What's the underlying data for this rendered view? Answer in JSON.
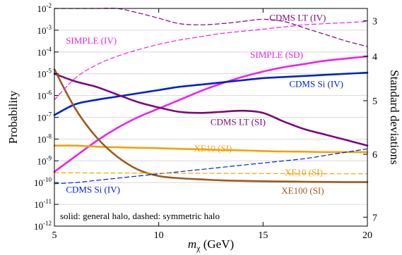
{
  "chart_data": {
    "type": "line",
    "xlabel_main": "m",
    "xlabel_sub": "χ",
    "xlabel_unit": " (GeV)",
    "ylabel": "Probability",
    "ylabel_right": "Standard deviations",
    "xlim": [
      5,
      20
    ],
    "ylim_log10": [
      -12,
      -2
    ],
    "y_scale": "log",
    "grid": "horizontal",
    "x_ticks": [
      {
        "v": 5,
        "label": "5"
      },
      {
        "v": 10,
        "label": "10"
      },
      {
        "v": 15,
        "label": "15"
      },
      {
        "v": 20,
        "label": "20"
      }
    ],
    "y_ticks": [
      {
        "exp": -2,
        "label": "10-2"
      },
      {
        "exp": -3,
        "label": "10-3"
      },
      {
        "exp": -4,
        "label": "10-4"
      },
      {
        "exp": -5,
        "label": "10-5"
      },
      {
        "exp": -6,
        "label": "10-6"
      },
      {
        "exp": -7,
        "label": "10-7"
      },
      {
        "exp": -8,
        "label": "10-8"
      },
      {
        "exp": -9,
        "label": "10-9"
      },
      {
        "exp": -10,
        "label": "10-10"
      },
      {
        "exp": -11,
        "label": "10-11"
      },
      {
        "exp": -12,
        "label": "10-12"
      }
    ],
    "right_ticks": [
      {
        "sigma": 3,
        "log10p": -2.57,
        "label": "3"
      },
      {
        "sigma": 4,
        "log10p": -4.2,
        "label": "4"
      },
      {
        "sigma": 5,
        "log10p": -6.24,
        "label": "5"
      },
      {
        "sigma": 6,
        "log10p": -8.7,
        "label": "6"
      },
      {
        "sigma": 7,
        "log10p": -11.59,
        "label": "7"
      }
    ],
    "legend_note": "solid: general halo, dashed: symmetric halo",
    "series": [
      {
        "name": "SIMPLE (SD)",
        "style": "solid",
        "color": "#ee22ee",
        "x": [
          5,
          6,
          7,
          8,
          9,
          10,
          11,
          12,
          13,
          14,
          15,
          16,
          17,
          18,
          19,
          20
        ],
        "log10p": [
          -9.5,
          -8.8,
          -8.1,
          -7.5,
          -7.0,
          -6.6,
          -6.2,
          -5.8,
          -5.45,
          -5.15,
          -4.9,
          -4.7,
          -4.55,
          -4.4,
          -4.3,
          -4.2
        ]
      },
      {
        "name": "CDMS Si (IV)",
        "style": "solid",
        "color": "#0022cc",
        "x": [
          5,
          6,
          7,
          8,
          9,
          10,
          11,
          12,
          13,
          14,
          15,
          16,
          17,
          18,
          19,
          20
        ],
        "log10p": [
          -6.9,
          -6.4,
          -6.2,
          -6.05,
          -5.9,
          -5.75,
          -5.6,
          -5.5,
          -5.4,
          -5.3,
          -5.2,
          -5.15,
          -5.1,
          -5.05,
          -5.0,
          -4.95
        ]
      },
      {
        "name": "CDMS LT (SI)",
        "style": "solid",
        "color": "#7a0a7a",
        "x": [
          5,
          6,
          7,
          8,
          9,
          10,
          11,
          12,
          13,
          14,
          15,
          16,
          17,
          18,
          19,
          20
        ],
        "log10p": [
          -5.0,
          -5.35,
          -5.6,
          -5.95,
          -6.3,
          -6.55,
          -6.75,
          -6.8,
          -6.75,
          -6.7,
          -6.8,
          -7.2,
          -7.55,
          -7.8,
          -8.05,
          -8.3
        ]
      },
      {
        "name": "XE10 (SI)",
        "style": "solid",
        "color": "#f2a20a",
        "x": [
          5,
          6,
          7,
          8,
          9,
          10,
          11,
          12,
          13,
          14,
          15,
          16,
          17,
          18,
          19,
          20
        ],
        "log10p": [
          -8.3,
          -8.3,
          -8.35,
          -8.38,
          -8.4,
          -8.42,
          -8.45,
          -8.47,
          -8.5,
          -8.52,
          -8.55,
          -8.57,
          -8.58,
          -8.6,
          -8.6,
          -8.6
        ]
      },
      {
        "name": "XE100 (SI)",
        "style": "solid",
        "color": "#9a5a20",
        "x": [
          5,
          6,
          7,
          8,
          9,
          10,
          11,
          12,
          13,
          14,
          15,
          16,
          17,
          18,
          19,
          20
        ],
        "log10p": [
          -4.8,
          -6.6,
          -7.9,
          -8.8,
          -9.4,
          -9.7,
          -9.8,
          -9.85,
          -9.9,
          -9.92,
          -9.94,
          -9.95,
          -9.96,
          -9.97,
          -9.98,
          -9.98
        ]
      },
      {
        "name": "CDMS LT (IV)",
        "style": "dashed",
        "color": "#7a0a7a",
        "x": [
          5,
          6,
          7,
          8,
          9,
          10,
          11,
          12,
          13,
          14,
          15,
          16,
          17,
          18,
          19,
          20
        ],
        "log10p": [
          -2.0,
          -2.0,
          -2.0,
          -2.0,
          -2.2,
          -2.45,
          -2.7,
          -2.75,
          -2.7,
          -2.6,
          -2.5,
          -2.6,
          -2.9,
          -3.2,
          -3.5,
          -3.75
        ]
      },
      {
        "name": "SIMPLE (IV)",
        "style": "dashed",
        "color": "#ee22ee",
        "x": [
          5,
          6,
          7,
          8,
          9,
          10,
          11,
          12,
          13,
          14,
          15,
          16,
          17,
          18,
          19,
          20
        ],
        "log10p": [
          -6.2,
          -5.2,
          -4.6,
          -4.2,
          -3.9,
          -3.65,
          -3.45,
          -3.3,
          -3.15,
          -3.05,
          -2.95,
          -2.85,
          -2.75,
          -2.7,
          -2.65,
          -2.6
        ]
      },
      {
        "name": "CDMS Si (IV)",
        "style": "dashed",
        "color": "#0022cc",
        "x": [
          5,
          6,
          7,
          8,
          9,
          10,
          11,
          12,
          13,
          14,
          15,
          16,
          17,
          18,
          19,
          20
        ],
        "log10p": [
          -10.05,
          -10.0,
          -9.9,
          -9.8,
          -9.7,
          -9.6,
          -9.5,
          -9.4,
          -9.3,
          -9.2,
          -9.1,
          -9.0,
          -8.9,
          -8.75,
          -8.6,
          -8.45
        ]
      },
      {
        "name": "XE10 (SI)",
        "style": "dashed",
        "color": "#f2a20a",
        "x": [
          5,
          20
        ],
        "log10p": [
          -9.55,
          -9.6
        ]
      }
    ],
    "annotations": [
      {
        "text": "CDMS LT (IV)",
        "color": "#7a0a7a",
        "x": 15.3,
        "log10p": -2.4,
        "anchor": "start"
      },
      {
        "text": "SIMPLE (IV)",
        "color": "#ee22ee",
        "x": 5.55,
        "log10p": -3.45,
        "anchor": "start"
      },
      {
        "text": "SIMPLE (SD)",
        "color": "#ee22ee",
        "x": 15.65,
        "log10p": -4.1,
        "anchor": "middle"
      },
      {
        "text": "CDMS Si (IV)",
        "color": "#0022cc",
        "x": 17.55,
        "log10p": -5.45,
        "anchor": "middle"
      },
      {
        "text": "CDMS LT (SI)",
        "color": "#7a0a7a",
        "x": 13.8,
        "log10p": -7.2,
        "anchor": "middle"
      },
      {
        "text": "XE10 (SI)",
        "color": "#f2a20a",
        "x": 12.6,
        "log10p": -8.4,
        "anchor": "middle"
      },
      {
        "text": "XE10 (SI)",
        "color": "#f2a20a",
        "x": 16.95,
        "log10p": -9.5,
        "anchor": "middle"
      },
      {
        "text": "CDMS Si (IV)",
        "color": "#0022cc",
        "x": 6.85,
        "log10p": -10.3,
        "anchor": "middle"
      },
      {
        "text": "XE100 (SI)",
        "color": "#9a5a20",
        "x": 16.9,
        "log10p": -10.35,
        "anchor": "middle"
      }
    ]
  }
}
